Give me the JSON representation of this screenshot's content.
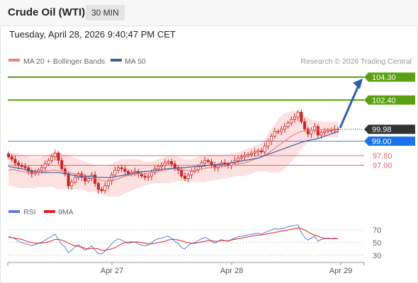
{
  "header": {
    "title": "Crude Oil (WTI)",
    "timeframe": "30 MIN",
    "timestamp": "Tuesday, April 28, 2026 9:40:47 PM CET"
  },
  "legend": {
    "ma20": "MA 20 + Bollinger Bands",
    "ma50": "MA 50",
    "credit": "Research © 2026 Trading Central",
    "rsi": "RSI",
    "rsi_ma": "9MA"
  },
  "colors": {
    "candle": "#cc2222",
    "ma20": "#f08080",
    "ma50": "#3b5f9e",
    "bollinger_fill": "#fde0e0",
    "resistance": "#5aa012",
    "pivot": "#4a86e8",
    "support": "#e06666",
    "rsi_line": "#5b7fd6",
    "rsi_ma_line": "#e02020",
    "arrow": "#2d5fa8"
  },
  "chart_data": [
    {
      "type": "candlestick",
      "ylim": [
        94.4,
        105.0
      ],
      "x_ticks": [
        "Apr 27",
        "Apr 28",
        "Apr 29"
      ],
      "last_price": 99.98,
      "target_arrow": {
        "from": 99.98,
        "to": 104.3
      },
      "levels": [
        {
          "label": "104.30",
          "value": 104.3,
          "kind": "resistance"
        },
        {
          "label": "102.40",
          "value": 102.4,
          "kind": "resistance"
        },
        {
          "label": "99.98",
          "value": 99.98,
          "kind": "last"
        },
        {
          "label": "99.00",
          "value": 99.0,
          "kind": "pivot"
        },
        {
          "label": "97.80",
          "value": 97.8,
          "kind": "support"
        },
        {
          "label": "97.00",
          "value": 97.0,
          "kind": "support"
        }
      ],
      "closes": [
        97.7,
        97.5,
        97.2,
        97.0,
        96.9,
        96.8,
        96.5,
        96.3,
        96.4,
        96.6,
        96.8,
        97.1,
        97.4,
        97.7,
        98.0,
        97.4,
        96.7,
        96.3,
        95.3,
        95.6,
        96.0,
        96.3,
        96.0,
        95.7,
        95.9,
        96.2,
        95.5,
        95.0,
        94.9,
        95.3,
        95.7,
        96.2,
        96.6,
        96.8,
        96.7,
        96.5,
        96.3,
        96.4,
        96.5,
        96.3,
        96.1,
        96.0,
        96.1,
        96.4,
        96.7,
        96.9,
        97.0,
        97.2,
        97.3,
        97.1,
        96.8,
        96.6,
        96.1,
        95.9,
        96.2,
        96.5,
        96.6,
        96.9,
        97.2,
        97.4,
        97.3,
        97.0,
        96.8,
        97.0,
        97.2,
        97.1,
        97.0,
        97.2,
        97.4,
        97.6,
        97.7,
        97.8,
        97.9,
        98.0,
        98.1,
        98.2,
        98.1,
        98.6,
        99.0,
        99.4,
        99.8,
        99.8,
        100.0,
        100.2,
        100.5,
        100.8,
        101.0,
        101.4,
        100.6,
        100.0,
        99.6,
        99.9,
        100.2,
        99.5,
        99.7,
        99.8,
        99.9,
        99.9,
        100.0,
        99.98
      ],
      "ma20": [
        96.6,
        96.65,
        96.6,
        96.55,
        96.5,
        96.45,
        96.4,
        96.35,
        96.35,
        96.4,
        96.45,
        96.5,
        96.55,
        96.6,
        96.6,
        96.55,
        96.5,
        96.45,
        96.4,
        96.35,
        96.3,
        96.25,
        96.2,
        96.1,
        96.0,
        95.95,
        95.9,
        95.8,
        95.75,
        95.7,
        95.7,
        95.75,
        95.8,
        95.9,
        96.0,
        96.1,
        96.15,
        96.2,
        96.25,
        96.3,
        96.3,
        96.3,
        96.35,
        96.4,
        96.45,
        96.5,
        96.55,
        96.6,
        96.65,
        96.7,
        96.7,
        96.7,
        96.65,
        96.6,
        96.55,
        96.55,
        96.6,
        96.65,
        96.7,
        96.75,
        96.8,
        96.8,
        96.85,
        96.85,
        96.9,
        96.9,
        96.95,
        97.0,
        97.05,
        97.1,
        97.15,
        97.2,
        97.3,
        97.4,
        97.5,
        97.6,
        97.7,
        97.85,
        98.0,
        98.2,
        98.4,
        98.6,
        98.8,
        99.0,
        99.2,
        99.4,
        99.55,
        99.7,
        99.8,
        99.85,
        99.9,
        99.9,
        99.95,
        99.95,
        99.95,
        99.95,
        99.95,
        99.95,
        99.95,
        99.95
      ],
      "ma50": [
        96.9,
        96.85,
        96.8,
        96.75,
        96.7,
        96.65,
        96.6,
        96.55,
        96.5,
        96.45,
        96.4,
        96.4,
        96.4,
        96.4,
        96.4,
        96.4,
        96.35,
        96.3,
        96.25,
        96.2,
        96.15,
        96.1,
        96.1,
        96.1,
        96.1,
        96.1,
        96.05,
        96.0,
        96.0,
        96.0,
        96.0,
        96.0,
        96.05,
        96.1,
        96.15,
        96.2,
        96.25,
        96.3,
        96.35,
        96.4,
        96.45,
        96.5,
        96.5,
        96.55,
        96.6,
        96.6,
        96.65,
        96.7,
        96.7,
        96.75,
        96.75,
        96.8,
        96.8,
        96.8,
        96.85,
        96.85,
        96.9,
        96.9,
        96.95,
        96.95,
        97.0,
        97.0,
        97.05,
        97.05,
        97.1,
        97.1,
        97.15,
        97.2,
        97.25,
        97.3,
        97.35,
        97.4,
        97.45,
        97.5,
        97.55,
        97.6,
        97.7,
        97.8,
        97.9,
        98.0,
        98.1,
        98.2,
        98.3,
        98.4,
        98.5,
        98.6,
        98.7,
        98.8,
        98.9,
        99.0,
        99.05,
        99.1,
        99.15,
        99.2,
        99.3,
        99.4,
        99.5,
        99.6,
        99.7,
        99.8
      ],
      "boll_upper": [
        98.0,
        98.0,
        98.0,
        98.0,
        97.9,
        97.8,
        97.7,
        97.6,
        97.6,
        97.6,
        97.7,
        97.8,
        97.9,
        98.0,
        98.1,
        98.1,
        98.0,
        97.9,
        97.8,
        97.7,
        97.6,
        97.5,
        97.4,
        97.3,
        97.2,
        97.1,
        97.0,
        96.9,
        96.9,
        96.9,
        97.0,
        97.1,
        97.3,
        97.4,
        97.5,
        97.5,
        97.5,
        97.5,
        97.5,
        97.5,
        97.4,
        97.3,
        97.3,
        97.3,
        97.4,
        97.5,
        97.6,
        97.7,
        97.8,
        97.8,
        97.8,
        97.7,
        97.6,
        97.5,
        97.5,
        97.5,
        97.6,
        97.7,
        97.8,
        97.9,
        97.9,
        97.9,
        97.9,
        97.9,
        97.9,
        97.9,
        97.9,
        98.0,
        98.0,
        98.1,
        98.2,
        98.3,
        98.4,
        98.5,
        98.6,
        98.7,
        98.9,
        99.2,
        99.6,
        100.0,
        100.4,
        100.8,
        101.1,
        101.3,
        101.4,
        101.5,
        101.5,
        101.5,
        101.3,
        101.1,
        100.9,
        100.8,
        100.7,
        100.7,
        100.6,
        100.6,
        100.6,
        100.6,
        100.6,
        100.6
      ],
      "boll_lower": [
        95.3,
        95.3,
        95.2,
        95.1,
        95.1,
        95.1,
        95.1,
        95.1,
        95.1,
        95.2,
        95.2,
        95.2,
        95.2,
        95.2,
        95.1,
        95.0,
        95.0,
        95.0,
        95.0,
        95.0,
        95.0,
        95.0,
        95.0,
        94.9,
        94.8,
        94.8,
        94.8,
        94.7,
        94.6,
        94.5,
        94.4,
        94.4,
        94.4,
        94.4,
        94.5,
        94.7,
        94.8,
        94.9,
        95.0,
        95.1,
        95.2,
        95.3,
        95.4,
        95.5,
        95.5,
        95.5,
        95.5,
        95.5,
        95.5,
        95.6,
        95.6,
        95.7,
        95.7,
        95.7,
        95.6,
        95.6,
        95.6,
        95.6,
        95.6,
        95.6,
        95.7,
        95.7,
        95.8,
        95.8,
        95.9,
        95.9,
        96.0,
        96.0,
        96.1,
        96.1,
        96.1,
        96.1,
        96.2,
        96.3,
        96.4,
        96.5,
        96.5,
        96.5,
        96.4,
        96.4,
        96.4,
        96.4,
        96.5,
        96.7,
        97.0,
        97.3,
        97.6,
        97.9,
        98.3,
        98.6,
        98.9,
        99.0,
        99.2,
        99.2,
        99.3,
        99.3,
        99.3,
        99.3,
        99.3,
        99.3
      ]
    },
    {
      "type": "line",
      "series_names": [
        "RSI",
        "9MA"
      ],
      "ylim": [
        22,
        80
      ],
      "y_ticks": [
        70,
        50,
        30
      ],
      "rsi": [
        60,
        58,
        56,
        52,
        50,
        48,
        47,
        45,
        47,
        49,
        51,
        54,
        57,
        60,
        63,
        55,
        47,
        43,
        34,
        38,
        43,
        47,
        42,
        38,
        41,
        45,
        38,
        33,
        32,
        37,
        42,
        48,
        53,
        56,
        54,
        51,
        49,
        50,
        51,
        48,
        46,
        45,
        46,
        50,
        54,
        56,
        57,
        59,
        60,
        57,
        52,
        49,
        42,
        40,
        45,
        49,
        50,
        53,
        56,
        58,
        56,
        52,
        49,
        52,
        55,
        53,
        52,
        55,
        57,
        59,
        60,
        61,
        62,
        63,
        64,
        65,
        63,
        66,
        68,
        70,
        72,
        71,
        72,
        73,
        75,
        76,
        77,
        78,
        66,
        58,
        54,
        57,
        60,
        52,
        55,
        56,
        57,
        56,
        57,
        56
      ],
      "rsi_ma": [
        58,
        58,
        57,
        56,
        55,
        53,
        51,
        50,
        49,
        49,
        49,
        50,
        51,
        53,
        55,
        55,
        54,
        52,
        49,
        47,
        45,
        44,
        43,
        41,
        40,
        41,
        41,
        40,
        38,
        38,
        39,
        40,
        42,
        45,
        48,
        50,
        51,
        51,
        51,
        51,
        50,
        49,
        48,
        48,
        49,
        50,
        51,
        52,
        54,
        55,
        55,
        54,
        53,
        51,
        50,
        49,
        49,
        50,
        51,
        52,
        53,
        53,
        52,
        52,
        53,
        53,
        53,
        54,
        55,
        56,
        57,
        58,
        59,
        60,
        61,
        62,
        62,
        63,
        64,
        65,
        66,
        67,
        68,
        69,
        70,
        71,
        72,
        73,
        72,
        70,
        67,
        64,
        62,
        60,
        58,
        57,
        56,
        56,
        56,
        56
      ]
    }
  ]
}
